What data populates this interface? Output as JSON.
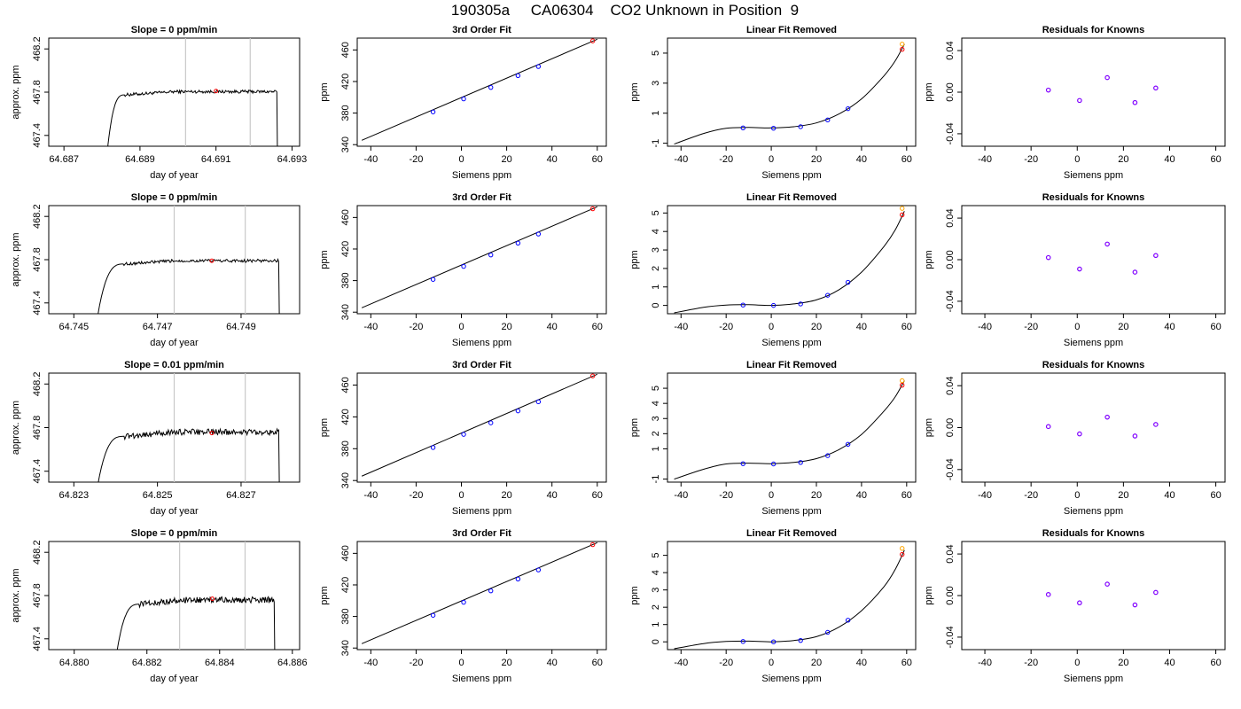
{
  "page": {
    "title": "190305a     CA06304    CO2 Unknown in Position  9"
  },
  "colors": {
    "ink": "#000000",
    "window_lines": "#c8c8c8",
    "known_points": "#0000ff",
    "residual_points": "#8000ff",
    "unknown_point": "#ff0000",
    "unknown_point_alt": "#ffa500"
  },
  "chart_data": [
    {
      "type": "line",
      "panel": "raw",
      "row": 1,
      "title": "Slope =  0  ppm/min",
      "xlabel": "day of year",
      "ylabel": "approx. ppm",
      "xlim": [
        64.6866,
        64.6932
      ],
      "ylim": [
        467.3,
        468.3
      ],
      "xticks": [
        64.687,
        64.689,
        64.691,
        64.693
      ],
      "yticks": [
        467.4,
        467.8,
        468.2
      ],
      "xtick_labels": [
        "64.687",
        "64.689",
        "64.691",
        "64.693"
      ],
      "ytick_labels": [
        "467.4",
        "467.8",
        "468.2"
      ],
      "grid": false,
      "vlines": [
        64.6902,
        64.6919
      ],
      "trace": {
        "start": 64.6881,
        "rise_end": 64.6886,
        "plateau": [
          467.795,
          467.815
        ],
        "end": 64.6926
      },
      "marker": {
        "x": 64.691,
        "y": 467.81
      }
    },
    {
      "type": "line",
      "panel": "fit",
      "row": 1,
      "title": "3rd Order Fit",
      "xlabel": "Siemens ppm",
      "ylabel": "ppm",
      "xlim": [
        -46,
        64
      ],
      "ylim": [
        338,
        475
      ],
      "xticks": [
        -40,
        -20,
        0,
        20,
        40,
        60
      ],
      "yticks": [
        340,
        380,
        420,
        460
      ],
      "xtick_labels": [
        "-40",
        "-20",
        "0",
        "20",
        "40",
        "60"
      ],
      "ytick_labels": [
        "340",
        "380",
        "420",
        "460"
      ],
      "grid": false,
      "line": {
        "x": [
          -44,
          60
        ],
        "y": [
          345.5,
          473.5
        ]
      },
      "points": [
        {
          "x": -12.5,
          "y": 381.5
        },
        {
          "x": 1,
          "y": 398
        },
        {
          "x": 13,
          "y": 412.5
        },
        {
          "x": 25,
          "y": 427.5
        },
        {
          "x": 34,
          "y": 439
        }
      ],
      "unknown": [
        {
          "x": 58,
          "y": 471.5
        }
      ]
    },
    {
      "type": "line",
      "panel": "linfit",
      "row": 1,
      "title": "Linear Fit Removed",
      "xlabel": "Siemens ppm",
      "ylabel": "ppm",
      "xlim": [
        -46,
        64
      ],
      "ylim": [
        -1.2,
        6
      ],
      "xticks": [
        -40,
        -20,
        0,
        20,
        40,
        60
      ],
      "yticks": [
        -1,
        1,
        3,
        5
      ],
      "xtick_labels": [
        "-40",
        "-20",
        "0",
        "20",
        "40",
        "60"
      ],
      "ytick_labels": [
        "-1",
        "1",
        "3",
        "5"
      ],
      "grid": false,
      "curve": {
        "x": [
          -43,
          -30,
          -20,
          -10,
          0,
          10,
          20,
          30,
          40,
          50,
          55,
          59
        ],
        "y": [
          -1.05,
          -0.35,
          0.0,
          0.05,
          0.02,
          0.1,
          0.35,
          0.95,
          1.95,
          3.5,
          4.5,
          5.6
        ]
      },
      "points": [
        {
          "x": -12.5,
          "y": 0.02
        },
        {
          "x": 1,
          "y": 0.0
        },
        {
          "x": 13,
          "y": 0.1
        },
        {
          "x": 25,
          "y": 0.55
        },
        {
          "x": 34,
          "y": 1.3
        }
      ],
      "unknown": [
        {
          "x": 58,
          "y": 5.25
        }
      ],
      "unknown_alt": [
        {
          "x": 58,
          "y": 5.6
        }
      ]
    },
    {
      "type": "scatter",
      "panel": "resid",
      "row": 1,
      "title": "Residuals for Knowns",
      "xlabel": "Siemens ppm",
      "ylabel": "ppm",
      "xlim": [
        -50,
        64
      ],
      "ylim": [
        -0.052,
        0.052
      ],
      "xticks": [
        -40,
        -20,
        0,
        20,
        40,
        60
      ],
      "yticks": [
        -0.04,
        0.0,
        0.04
      ],
      "xtick_labels": [
        "-40",
        "-20",
        "0",
        "20",
        "40",
        "60"
      ],
      "ytick_labels": [
        "-0.04",
        "0.00",
        "0.04"
      ],
      "grid": false,
      "points": [
        {
          "x": -12.5,
          "y": 0.002
        },
        {
          "x": 1,
          "y": -0.008
        },
        {
          "x": 13,
          "y": 0.014
        },
        {
          "x": 25,
          "y": -0.01
        },
        {
          "x": 34,
          "y": 0.004
        }
      ]
    },
    {
      "type": "line",
      "panel": "raw",
      "row": 2,
      "title": "Slope =  0  ppm/min",
      "xlabel": "day of year",
      "ylabel": "approx. ppm",
      "xlim": [
        64.7444,
        64.7504
      ],
      "ylim": [
        467.3,
        468.3
      ],
      "xticks": [
        64.745,
        64.747,
        64.749
      ],
      "yticks": [
        467.4,
        467.8,
        468.2
      ],
      "xtick_labels": [
        "64.745",
        "64.747",
        "64.749"
      ],
      "ytick_labels": [
        "467.4",
        "467.8",
        "468.2"
      ],
      "grid": false,
      "vlines": [
        64.7474,
        64.7491
      ],
      "trace": {
        "start": 64.7455,
        "rise_end": 64.7462,
        "plateau": [
          467.78,
          467.8
        ],
        "end": 64.7499
      },
      "marker": {
        "x": 64.7483,
        "y": 467.79
      }
    },
    {
      "type": "line",
      "panel": "fit",
      "row": 2,
      "title": "3rd Order Fit",
      "xlabel": "Siemens ppm",
      "ylabel": "ppm",
      "xlim": [
        -46,
        64
      ],
      "ylim": [
        338,
        475
      ],
      "xticks": [
        -40,
        -20,
        0,
        20,
        40,
        60
      ],
      "yticks": [
        340,
        380,
        420,
        460
      ],
      "xtick_labels": [
        "-40",
        "-20",
        "0",
        "20",
        "40",
        "60"
      ],
      "ytick_labels": [
        "340",
        "380",
        "420",
        "460"
      ],
      "grid": false,
      "line": {
        "x": [
          -44,
          60
        ],
        "y": [
          345.5,
          473.5
        ]
      },
      "points": [
        {
          "x": -12.5,
          "y": 381.5
        },
        {
          "x": 1,
          "y": 398
        },
        {
          "x": 13,
          "y": 412.5
        },
        {
          "x": 25,
          "y": 427.5
        },
        {
          "x": 34,
          "y": 439
        }
      ],
      "unknown": [
        {
          "x": 58,
          "y": 471
        }
      ]
    },
    {
      "type": "line",
      "panel": "linfit",
      "row": 2,
      "title": "Linear Fit Removed",
      "xlabel": "Siemens ppm",
      "ylabel": "ppm",
      "xlim": [
        -46,
        64
      ],
      "ylim": [
        -0.45,
        5.4
      ],
      "xticks": [
        -40,
        -20,
        0,
        20,
        40,
        60
      ],
      "yticks": [
        0,
        1,
        2,
        3,
        4,
        5
      ],
      "xtick_labels": [
        "-40",
        "-20",
        "0",
        "20",
        "40",
        "60"
      ],
      "ytick_labels": [
        "0",
        "1",
        "2",
        "3",
        "4",
        "5"
      ],
      "grid": false,
      "curve": {
        "x": [
          -43,
          -30,
          -20,
          -10,
          0,
          10,
          20,
          30,
          40,
          50,
          55,
          59
        ],
        "y": [
          -0.4,
          -0.1,
          0.02,
          0.04,
          0.0,
          0.08,
          0.3,
          0.85,
          1.8,
          3.2,
          4.1,
          5.1
        ]
      },
      "points": [
        {
          "x": -12.5,
          "y": 0.02
        },
        {
          "x": 1,
          "y": 0.0
        },
        {
          "x": 13,
          "y": 0.08
        },
        {
          "x": 25,
          "y": 0.55
        },
        {
          "x": 34,
          "y": 1.25
        }
      ],
      "unknown": [
        {
          "x": 58,
          "y": 4.9
        }
      ],
      "unknown_alt": [
        {
          "x": 58,
          "y": 5.25
        }
      ]
    },
    {
      "type": "scatter",
      "panel": "resid",
      "row": 2,
      "title": "Residuals for Knowns",
      "xlabel": "Siemens ppm",
      "ylabel": "ppm",
      "xlim": [
        -50,
        64
      ],
      "ylim": [
        -0.052,
        0.052
      ],
      "xticks": [
        -40,
        -20,
        0,
        20,
        40,
        60
      ],
      "yticks": [
        -0.04,
        0.0,
        0.04
      ],
      "xtick_labels": [
        "-40",
        "-20",
        "0",
        "20",
        "40",
        "60"
      ],
      "ytick_labels": [
        "-0.04",
        "0.00",
        "0.04"
      ],
      "grid": false,
      "points": [
        {
          "x": -12.5,
          "y": 0.002
        },
        {
          "x": 1,
          "y": -0.009
        },
        {
          "x": 13,
          "y": 0.015
        },
        {
          "x": 25,
          "y": -0.012
        },
        {
          "x": 34,
          "y": 0.004
        }
      ]
    },
    {
      "type": "line",
      "panel": "raw",
      "row": 3,
      "title": "Slope =  0.01  ppm/min",
      "xlabel": "day of year",
      "ylabel": "approx. ppm",
      "xlim": [
        64.8224,
        64.8284
      ],
      "ylim": [
        467.3,
        468.3
      ],
      "xticks": [
        64.823,
        64.825,
        64.827
      ],
      "yticks": [
        467.4,
        467.8,
        468.2
      ],
      "xtick_labels": [
        "64.823",
        "64.825",
        "64.827"
      ],
      "ytick_labels": [
        "467.4",
        "467.8",
        "468.2"
      ],
      "grid": false,
      "vlines": [
        64.8254,
        64.8271
      ],
      "trace": {
        "start": 64.8235,
        "rise_end": 64.8242,
        "plateau": [
          467.74,
          467.78
        ],
        "end": 64.8279
      },
      "marker": {
        "x": 64.8263,
        "y": 467.75
      }
    },
    {
      "type": "line",
      "panel": "fit",
      "row": 3,
      "title": "3rd Order Fit",
      "xlabel": "Siemens ppm",
      "ylabel": "ppm",
      "xlim": [
        -46,
        64
      ],
      "ylim": [
        338,
        475
      ],
      "xticks": [
        -40,
        -20,
        0,
        20,
        40,
        60
      ],
      "yticks": [
        340,
        380,
        420,
        460
      ],
      "xtick_labels": [
        "-40",
        "-20",
        "0",
        "20",
        "40",
        "60"
      ],
      "ytick_labels": [
        "340",
        "380",
        "420",
        "460"
      ],
      "grid": false,
      "line": {
        "x": [
          -44,
          60
        ],
        "y": [
          345.5,
          473.5
        ]
      },
      "points": [
        {
          "x": -12.5,
          "y": 381.5
        },
        {
          "x": 1,
          "y": 398
        },
        {
          "x": 13,
          "y": 412.5
        },
        {
          "x": 25,
          "y": 427.5
        },
        {
          "x": 34,
          "y": 439
        }
      ],
      "unknown": [
        {
          "x": 58,
          "y": 471.5
        }
      ]
    },
    {
      "type": "line",
      "panel": "linfit",
      "row": 3,
      "title": "Linear Fit Removed",
      "xlabel": "Siemens ppm",
      "ylabel": "ppm",
      "xlim": [
        -46,
        64
      ],
      "ylim": [
        -1.2,
        6
      ],
      "xticks": [
        -40,
        -20,
        0,
        20,
        40,
        60
      ],
      "yticks": [
        -1,
        1,
        2,
        3,
        4,
        5
      ],
      "xtick_labels": [
        "-40",
        "-20",
        "0",
        "20",
        "40",
        "60"
      ],
      "ytick_labels": [
        "-1",
        "1",
        "2",
        "3",
        "4",
        "5"
      ],
      "grid": false,
      "curve": {
        "x": [
          -43,
          -30,
          -20,
          -10,
          0,
          10,
          20,
          30,
          40,
          50,
          55,
          59
        ],
        "y": [
          -1.0,
          -0.35,
          0.0,
          0.05,
          0.02,
          0.1,
          0.35,
          0.95,
          1.95,
          3.5,
          4.45,
          5.5
        ]
      },
      "points": [
        {
          "x": -12.5,
          "y": 0.02
        },
        {
          "x": 1,
          "y": 0.0
        },
        {
          "x": 13,
          "y": 0.1
        },
        {
          "x": 25,
          "y": 0.55
        },
        {
          "x": 34,
          "y": 1.3
        }
      ],
      "unknown": [
        {
          "x": 58,
          "y": 5.2
        }
      ],
      "unknown_alt": [
        {
          "x": 58,
          "y": 5.5
        }
      ]
    },
    {
      "type": "scatter",
      "panel": "resid",
      "row": 3,
      "title": "Residuals for Knowns",
      "xlabel": "Siemens ppm",
      "ylabel": "ppm",
      "xlim": [
        -50,
        64
      ],
      "ylim": [
        -0.052,
        0.052
      ],
      "xticks": [
        -40,
        -20,
        0,
        20,
        40,
        60
      ],
      "yticks": [
        -0.04,
        0.0,
        0.04
      ],
      "xtick_labels": [
        "-40",
        "-20",
        "0",
        "20",
        "40",
        "60"
      ],
      "ytick_labels": [
        "-0.04",
        "0.00",
        "0.04"
      ],
      "grid": false,
      "points": [
        {
          "x": -12.5,
          "y": 0.001
        },
        {
          "x": 1,
          "y": -0.006
        },
        {
          "x": 13,
          "y": 0.01
        },
        {
          "x": 25,
          "y": -0.008
        },
        {
          "x": 34,
          "y": 0.003
        }
      ]
    },
    {
      "type": "line",
      "panel": "raw",
      "row": 4,
      "title": "Slope =  0  ppm/min",
      "xlabel": "day of year",
      "ylabel": "approx. ppm",
      "xlim": [
        64.8793,
        64.8862
      ],
      "ylim": [
        467.3,
        468.3
      ],
      "xticks": [
        64.88,
        64.882,
        64.884,
        64.886
      ],
      "yticks": [
        467.4,
        467.8,
        468.2
      ],
      "xtick_labels": [
        "64.880",
        "64.882",
        "64.884",
        "64.886"
      ],
      "ytick_labels": [
        "467.4",
        "467.8",
        "468.2"
      ],
      "grid": false,
      "vlines": [
        64.8829,
        64.8847
      ],
      "trace": {
        "start": 64.8811,
        "rise_end": 64.8818,
        "plateau": [
          467.74,
          467.78
        ],
        "end": 64.8855
      },
      "marker": {
        "x": 64.8838,
        "y": 467.77
      }
    },
    {
      "type": "line",
      "panel": "fit",
      "row": 4,
      "title": "3rd Order Fit",
      "xlabel": "Siemens ppm",
      "ylabel": "ppm",
      "xlim": [
        -46,
        64
      ],
      "ylim": [
        338,
        475
      ],
      "xticks": [
        -40,
        -20,
        0,
        20,
        40,
        60
      ],
      "yticks": [
        340,
        380,
        420,
        460
      ],
      "xtick_labels": [
        "-40",
        "-20",
        "0",
        "20",
        "40",
        "60"
      ],
      "ytick_labels": [
        "340",
        "380",
        "420",
        "460"
      ],
      "grid": false,
      "line": {
        "x": [
          -44,
          60
        ],
        "y": [
          345.5,
          473.5
        ]
      },
      "points": [
        {
          "x": -12.5,
          "y": 381.5
        },
        {
          "x": 1,
          "y": 398
        },
        {
          "x": 13,
          "y": 412.5
        },
        {
          "x": 25,
          "y": 427.5
        },
        {
          "x": 34,
          "y": 439
        }
      ],
      "unknown": [
        {
          "x": 58,
          "y": 471
        }
      ]
    },
    {
      "type": "line",
      "panel": "linfit",
      "row": 4,
      "title": "Linear Fit Removed",
      "xlabel": "Siemens ppm",
      "ylabel": "ppm",
      "xlim": [
        -46,
        64
      ],
      "ylim": [
        -0.45,
        5.8
      ],
      "xticks": [
        -40,
        -20,
        0,
        20,
        40,
        60
      ],
      "yticks": [
        0,
        1,
        2,
        3,
        4,
        5
      ],
      "xtick_labels": [
        "-40",
        "-20",
        "0",
        "20",
        "40",
        "60"
      ],
      "ytick_labels": [
        "0",
        "1",
        "2",
        "3",
        "4",
        "5"
      ],
      "grid": false,
      "curve": {
        "x": [
          -43,
          -30,
          -20,
          -10,
          0,
          10,
          20,
          30,
          40,
          50,
          55,
          59
        ],
        "y": [
          -0.4,
          -0.1,
          0.02,
          0.04,
          0.0,
          0.08,
          0.3,
          0.85,
          1.8,
          3.2,
          4.2,
          5.3
        ]
      },
      "points": [
        {
          "x": -12.5,
          "y": 0.02
        },
        {
          "x": 1,
          "y": 0.0
        },
        {
          "x": 13,
          "y": 0.08
        },
        {
          "x": 25,
          "y": 0.55
        },
        {
          "x": 34,
          "y": 1.25
        }
      ],
      "unknown": [
        {
          "x": 58,
          "y": 5.05
        }
      ],
      "unknown_alt": [
        {
          "x": 58,
          "y": 5.4
        }
      ]
    },
    {
      "type": "scatter",
      "panel": "resid",
      "row": 4,
      "title": "Residuals for Knowns",
      "xlabel": "Siemens ppm",
      "ylabel": "ppm",
      "xlim": [
        -50,
        64
      ],
      "ylim": [
        -0.052,
        0.052
      ],
      "xticks": [
        -40,
        -20,
        0,
        20,
        40,
        60
      ],
      "yticks": [
        -0.04,
        0.0,
        0.04
      ],
      "xtick_labels": [
        "-40",
        "-20",
        "0",
        "20",
        "40",
        "60"
      ],
      "ytick_labels": [
        "-0.04",
        "0.00",
        "0.04"
      ],
      "grid": false,
      "points": [
        {
          "x": -12.5,
          "y": 0.001
        },
        {
          "x": 1,
          "y": -0.007
        },
        {
          "x": 13,
          "y": 0.011
        },
        {
          "x": 25,
          "y": -0.009
        },
        {
          "x": 34,
          "y": 0.003
        }
      ]
    }
  ]
}
